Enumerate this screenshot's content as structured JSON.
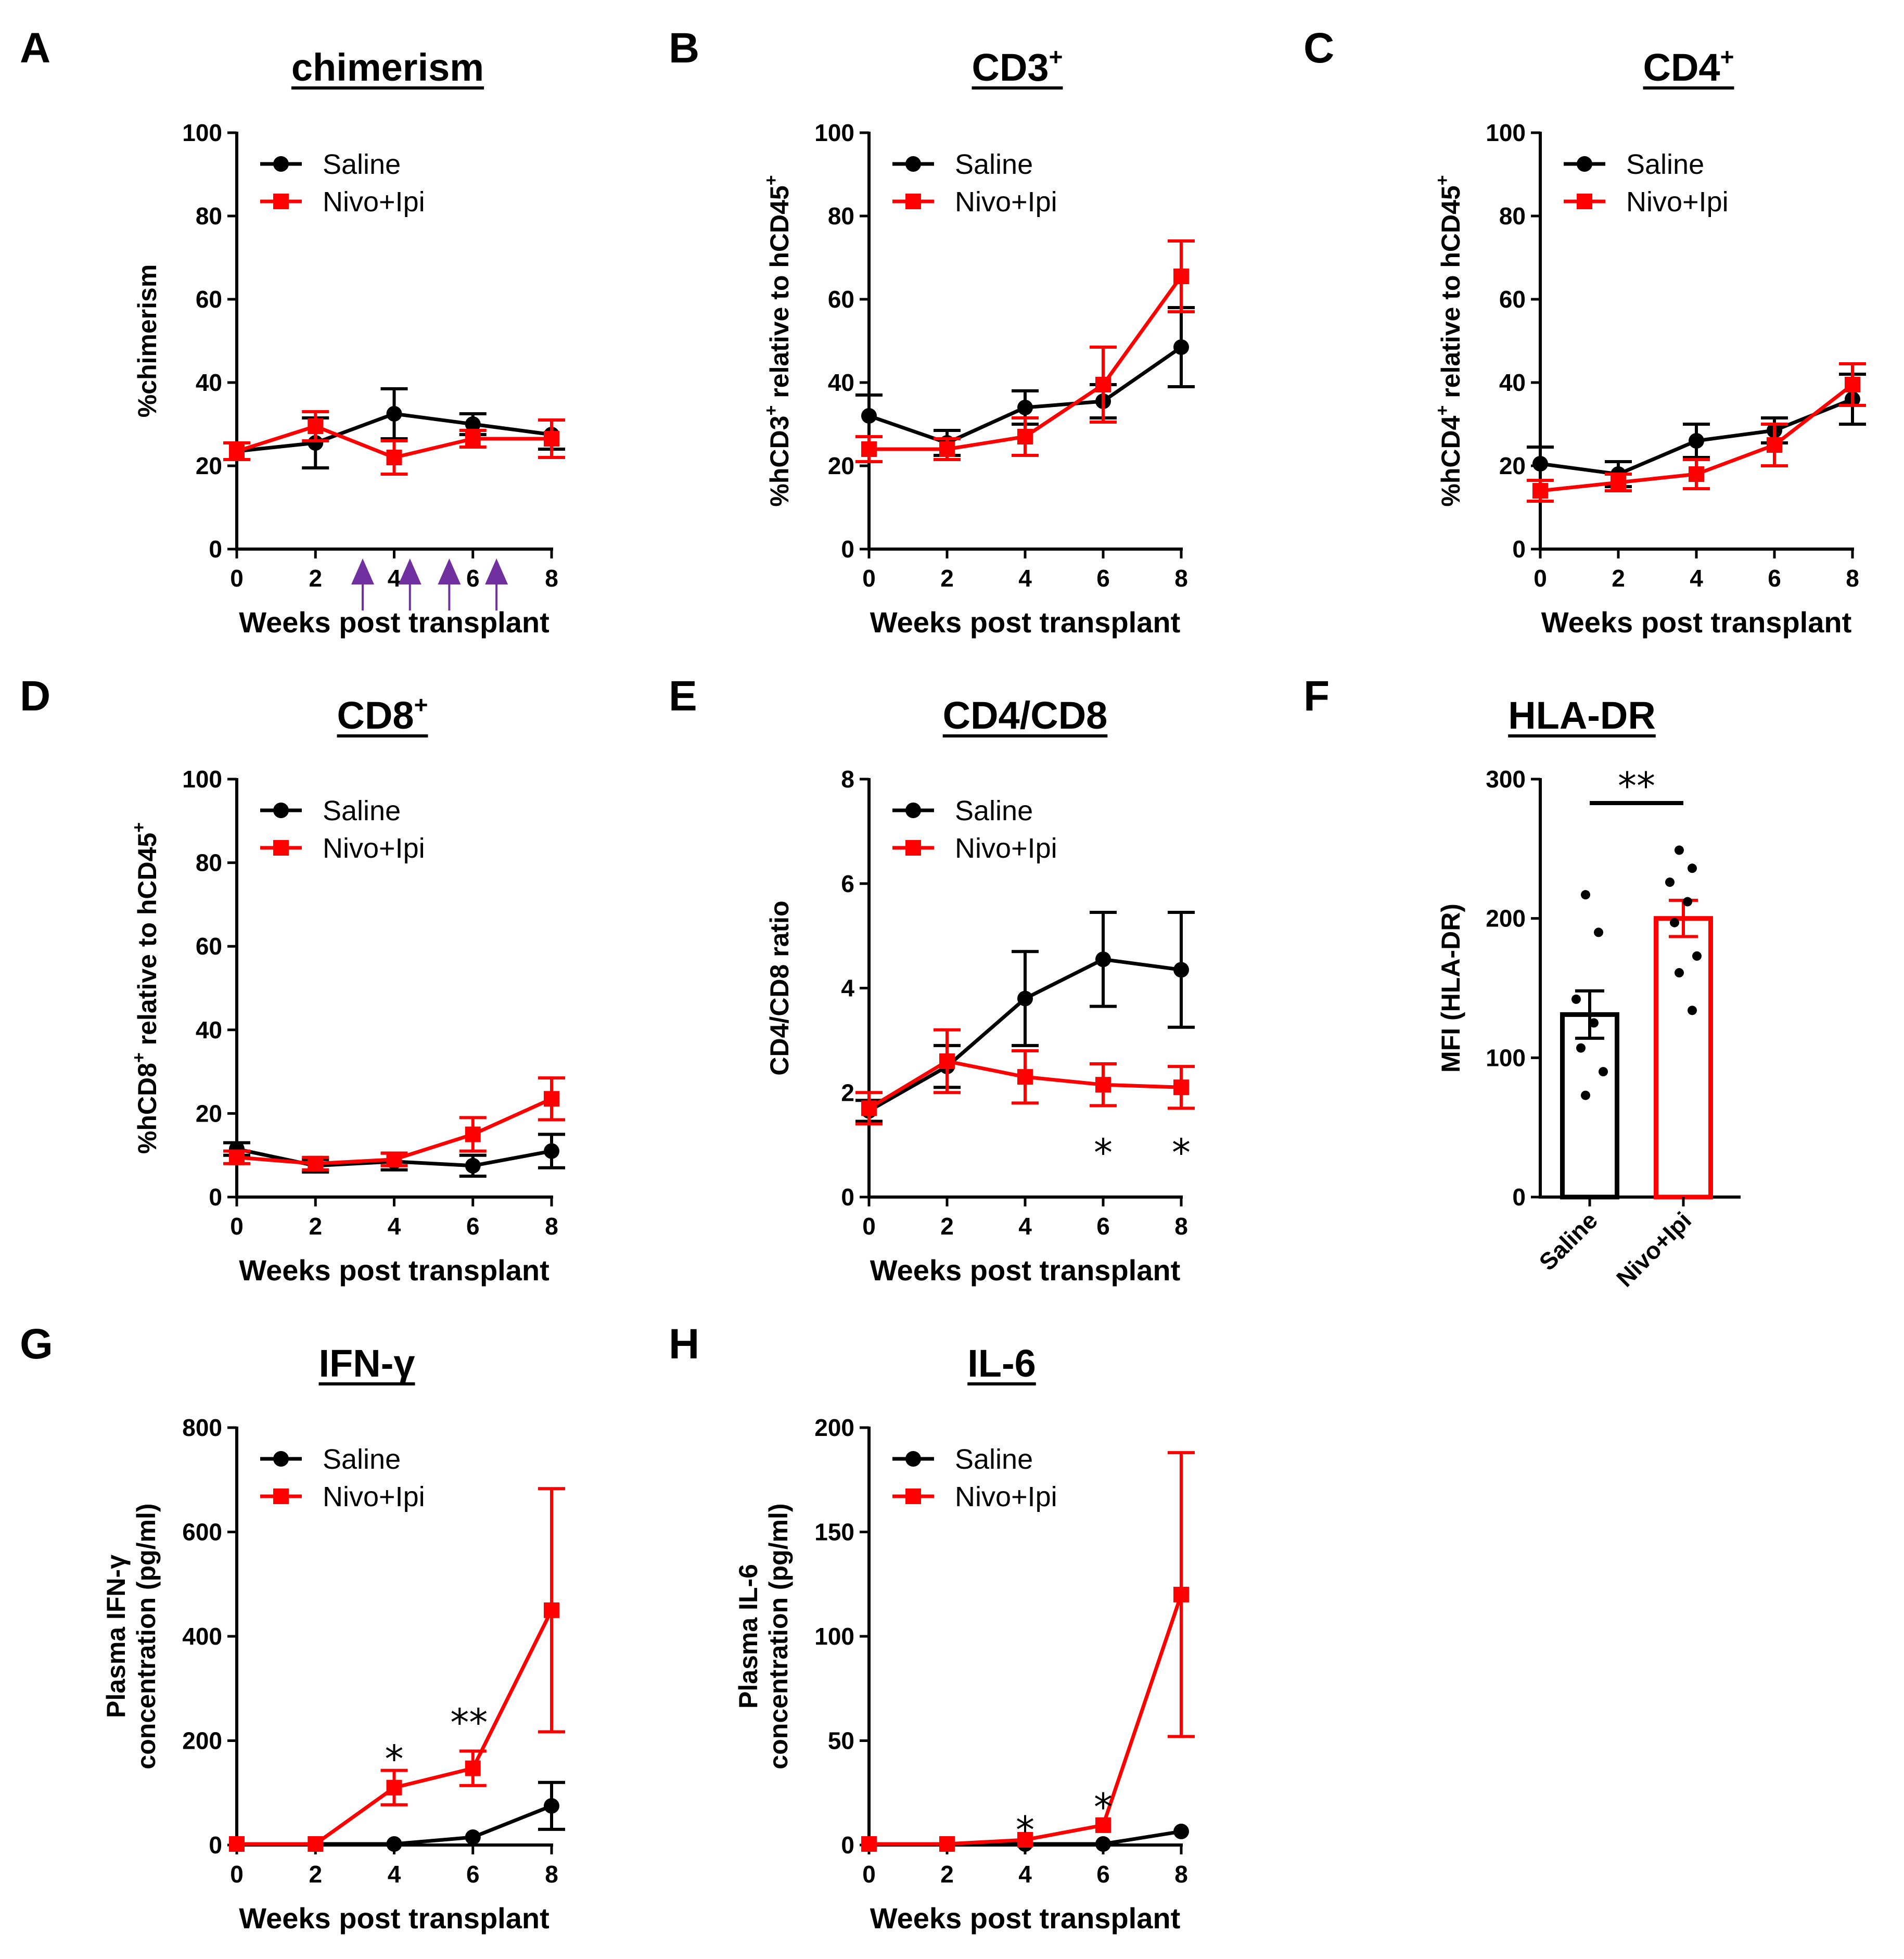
{
  "chart_data": [
    {
      "id": "A",
      "panel_label": "A",
      "type": "line",
      "title": "chimerism",
      "xlabel": "Weeks post transplant",
      "ylabel": "%chimerism",
      "x": [
        0,
        2,
        4,
        6,
        8
      ],
      "xlim": [
        0,
        8
      ],
      "ylim": [
        0,
        100
      ],
      "yticks": [
        0,
        20,
        40,
        60,
        80,
        100
      ],
      "xticks": [
        0,
        2,
        4,
        6,
        8
      ],
      "series": [
        {
          "name": "Saline",
          "color": "#000000",
          "marker": "circle",
          "values": [
            23.5,
            25.5,
            32.5,
            30,
            27.5
          ],
          "errors": [
            2,
            6,
            6,
            2.5,
            3.5
          ]
        },
        {
          "name": "Nivo+Ipi",
          "color": "#ff0000",
          "marker": "square",
          "values": [
            23.5,
            29.5,
            22,
            26.5,
            26.5
          ],
          "errors": [
            2,
            3.5,
            4,
            2,
            4.5
          ]
        }
      ],
      "legend": [
        "Saline",
        "Nivo+Ipi"
      ],
      "dosing_arrows_weeks": [
        3.2,
        4.4,
        5.4,
        6.6
      ],
      "arrow_color": "#7030a0",
      "annotations": []
    },
    {
      "id": "B",
      "panel_label": "B",
      "type": "line",
      "title": "CD3",
      "title_sup": "+",
      "xlabel": "Weeks post transplant",
      "ylabel_parts": [
        "%hCD3",
        "+",
        " relative to hCD45",
        "+"
      ],
      "x": [
        0,
        2,
        4,
        6,
        8
      ],
      "xlim": [
        0,
        8
      ],
      "ylim": [
        0,
        100
      ],
      "yticks": [
        0,
        20,
        40,
        60,
        80,
        100
      ],
      "xticks": [
        0,
        2,
        4,
        6,
        8
      ],
      "series": [
        {
          "name": "Saline",
          "color": "#000000",
          "marker": "circle",
          "values": [
            32,
            25.5,
            34,
            35.5,
            48.5
          ],
          "errors": [
            5,
            3,
            4,
            4,
            9.5
          ]
        },
        {
          "name": "Nivo+Ipi",
          "color": "#ff0000",
          "marker": "square",
          "values": [
            24,
            24,
            27,
            39.5,
            65.5
          ],
          "errors": [
            3,
            2.5,
            4.5,
            9,
            8.5
          ]
        }
      ],
      "legend": [
        "Saline",
        "Nivo+Ipi"
      ],
      "annotations": []
    },
    {
      "id": "C",
      "panel_label": "C",
      "type": "line",
      "title": "CD4",
      "title_sup": "+",
      "xlabel": "Weeks post transplant",
      "ylabel_parts": [
        "%hCD4",
        "+",
        " relative to hCD45",
        "+"
      ],
      "x": [
        0,
        2,
        4,
        6,
        8
      ],
      "xlim": [
        0,
        8
      ],
      "ylim": [
        0,
        100
      ],
      "yticks": [
        0,
        20,
        40,
        60,
        80,
        100
      ],
      "xticks": [
        0,
        2,
        4,
        6,
        8
      ],
      "series": [
        {
          "name": "Saline",
          "color": "#000000",
          "marker": "circle",
          "values": [
            20.5,
            18,
            26,
            28.5,
            36
          ],
          "errors": [
            4,
            3,
            4,
            3,
            6
          ]
        },
        {
          "name": "Nivo+Ipi",
          "color": "#ff0000",
          "marker": "square",
          "values": [
            14,
            16,
            18,
            25,
            39.5
          ],
          "errors": [
            2.5,
            2,
            3.5,
            5,
            5
          ]
        }
      ],
      "legend": [
        "Saline",
        "Nivo+Ipi"
      ],
      "annotations": []
    },
    {
      "id": "D",
      "panel_label": "D",
      "type": "line",
      "title": "CD8",
      "title_sup": "+",
      "xlabel": "Weeks post transplant",
      "ylabel_parts": [
        "%hCD8",
        "+",
        " relative to hCD45",
        "+"
      ],
      "x": [
        0,
        2,
        4,
        6,
        8
      ],
      "xlim": [
        0,
        8
      ],
      "ylim": [
        0,
        100
      ],
      "yticks": [
        0,
        20,
        40,
        60,
        80,
        100
      ],
      "xticks": [
        0,
        2,
        4,
        6,
        8
      ],
      "series": [
        {
          "name": "Saline",
          "color": "#000000",
          "marker": "circle",
          "values": [
            11.5,
            7.5,
            8.5,
            7.5,
            11
          ],
          "errors": [
            1.5,
            1.5,
            2,
            2.5,
            4
          ]
        },
        {
          "name": "Nivo+Ipi",
          "color": "#ff0000",
          "marker": "square",
          "values": [
            9.5,
            8,
            9,
            15,
            23.5
          ],
          "errors": [
            1.5,
            1.5,
            1.5,
            4,
            5
          ]
        }
      ],
      "legend": [
        "Saline",
        "Nivo+Ipi"
      ],
      "annotations": []
    },
    {
      "id": "E",
      "panel_label": "E",
      "type": "line",
      "title": "CD4/CD8",
      "xlabel": "Weeks post transplant",
      "ylabel": "CD4/CD8 ratio",
      "x": [
        0,
        2,
        4,
        6,
        8
      ],
      "xlim": [
        0,
        8
      ],
      "ylim": [
        0,
        8
      ],
      "yticks": [
        0,
        2,
        4,
        6,
        8
      ],
      "xticks": [
        0,
        2,
        4,
        6,
        8
      ],
      "series": [
        {
          "name": "Saline",
          "color": "#000000",
          "marker": "circle",
          "values": [
            1.65,
            2.5,
            3.8,
            4.55,
            4.35
          ],
          "errors": [
            0.2,
            0.4,
            0.9,
            0.9,
            1.1
          ]
        },
        {
          "name": "Nivo+Ipi",
          "color": "#ff0000",
          "marker": "square",
          "values": [
            1.7,
            2.6,
            2.3,
            2.15,
            2.1
          ],
          "errors": [
            0.3,
            0.6,
            0.5,
            0.4,
            0.4
          ]
        }
      ],
      "legend": [
        "Saline",
        "Nivo+Ipi"
      ],
      "annotations": [
        {
          "text": "*",
          "x": 6,
          "y": 1.0
        },
        {
          "text": "*",
          "x": 8,
          "y": 1.0
        }
      ]
    },
    {
      "id": "F",
      "panel_label": "F",
      "type": "bar",
      "title": "HLA-DR",
      "ylabel": "MFI (HLA-DR)",
      "categories": [
        "Saline",
        "Nivo+Ipi"
      ],
      "values": [
        131,
        200
      ],
      "errors": [
        17,
        13
      ],
      "ylim": [
        0,
        300
      ],
      "yticks": [
        0,
        100,
        200,
        300
      ],
      "colors": [
        "#000000",
        "#ff0000"
      ],
      "points": [
        [
          217,
          190,
          142,
          125,
          107,
          90,
          73
        ],
        [
          249,
          236,
          226,
          212,
          197,
          173,
          161,
          134
        ]
      ],
      "significance": "**"
    },
    {
      "id": "G",
      "panel_label": "G",
      "type": "line",
      "title": "IFN-γ",
      "xlabel": "Weeks post transplant",
      "ylabel_lines": [
        "Plasma IFN-γ",
        "concentration (pg/ml)"
      ],
      "x": [
        0,
        2,
        4,
        6,
        8
      ],
      "xlim": [
        0,
        8
      ],
      "ylim": [
        0,
        800
      ],
      "yticks": [
        0,
        200,
        400,
        600,
        800
      ],
      "xticks": [
        0,
        2,
        4,
        6,
        8
      ],
      "series": [
        {
          "name": "Saline",
          "color": "#000000",
          "marker": "circle",
          "values": [
            2,
            2,
            2,
            15,
            75
          ],
          "errors": [
            0,
            0,
            0,
            0,
            45
          ]
        },
        {
          "name": "Nivo+Ipi",
          "color": "#ff0000",
          "marker": "square",
          "values": [
            2,
            2,
            110,
            147,
            450
          ],
          "errors": [
            0,
            0,
            33,
            33,
            233
          ]
        }
      ],
      "legend": [
        "Saline",
        "Nivo+Ipi"
      ],
      "annotations": [
        {
          "text": "*",
          "x": 4,
          "y": 180
        },
        {
          "text": "**",
          "x": 5.9,
          "y": 250
        }
      ]
    },
    {
      "id": "H",
      "panel_label": "H",
      "type": "line",
      "title": "IL-6",
      "xlabel": "Weeks post transplant",
      "ylabel_lines": [
        "Plasma IL-6",
        "concentration (pg/ml)"
      ],
      "x": [
        0,
        2,
        4,
        6,
        8
      ],
      "xlim": [
        0,
        8
      ],
      "ylim": [
        0,
        200
      ],
      "yticks": [
        0,
        50,
        100,
        150,
        200
      ],
      "xticks": [
        0,
        2,
        4,
        6,
        8
      ],
      "series": [
        {
          "name": "Saline",
          "color": "#000000",
          "marker": "circle",
          "values": [
            0.5,
            0.5,
            0.5,
            0.5,
            6.5
          ],
          "errors": [
            0,
            0,
            0,
            0,
            0
          ]
        },
        {
          "name": "Nivo+Ipi",
          "color": "#ff0000",
          "marker": "square",
          "values": [
            0.5,
            0.5,
            2.5,
            9.5,
            120
          ],
          "errors": [
            0,
            0,
            0,
            0,
            68
          ]
        }
      ],
      "legend": [
        "Saline",
        "Nivo+Ipi"
      ],
      "annotations": [
        {
          "text": "*",
          "x": 4,
          "y": 11
        },
        {
          "text": "*",
          "x": 6,
          "y": 22
        }
      ]
    }
  ]
}
